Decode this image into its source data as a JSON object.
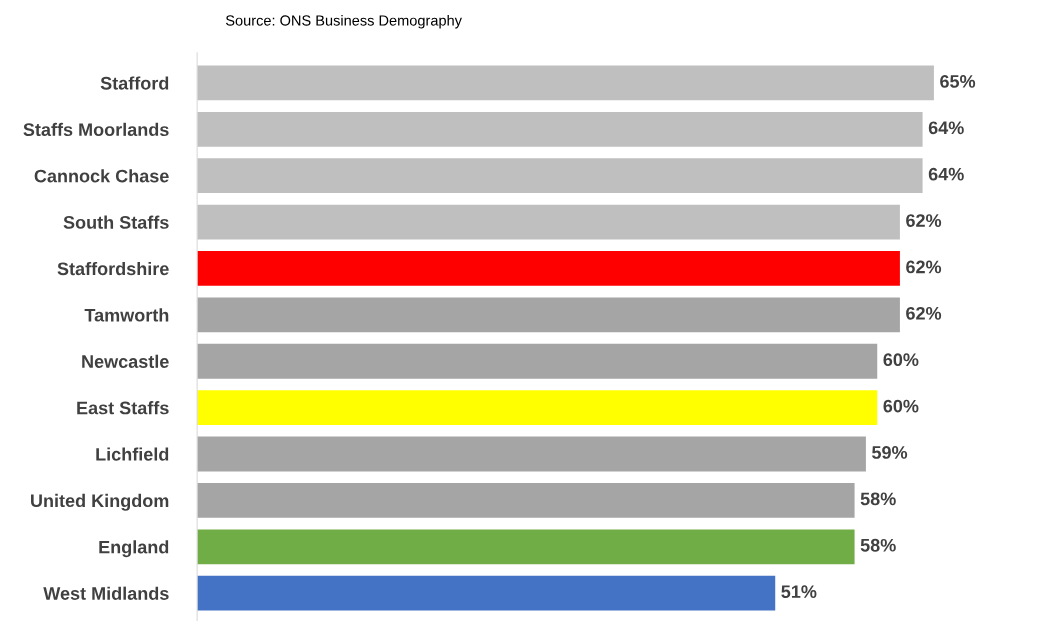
{
  "chart_data": {
    "type": "bar",
    "orientation": "horizontal",
    "annotations": [
      "Source: ONS Business Demography"
    ],
    "categories": [
      "Stafford",
      "Staffs Moorlands",
      "Cannock Chase",
      "South Staffs",
      "Staffordshire",
      "Tamworth",
      "Newcastle",
      "East Staffs",
      "Lichfield",
      "United Kingdom",
      "England",
      "West Midlands"
    ],
    "values": [
      65,
      64,
      64,
      62,
      62,
      62,
      60,
      60,
      59,
      58,
      58,
      51
    ],
    "colors": [
      "#bfbfbf",
      "#bfbfbf",
      "#bfbfbf",
      "#bfbfbf",
      "#ff0000",
      "#a5a5a5",
      "#a5a5a5",
      "#ffff00",
      "#a5a5a5",
      "#a5a5a5",
      "#70ad47",
      "#4472c4"
    ],
    "value_labels": [
      "65%",
      "64%",
      "64%",
      "62%",
      "62%",
      "62%",
      "60%",
      "60%",
      "59%",
      "58%",
      "58%",
      "51%"
    ],
    "data_labels": false
  }
}
